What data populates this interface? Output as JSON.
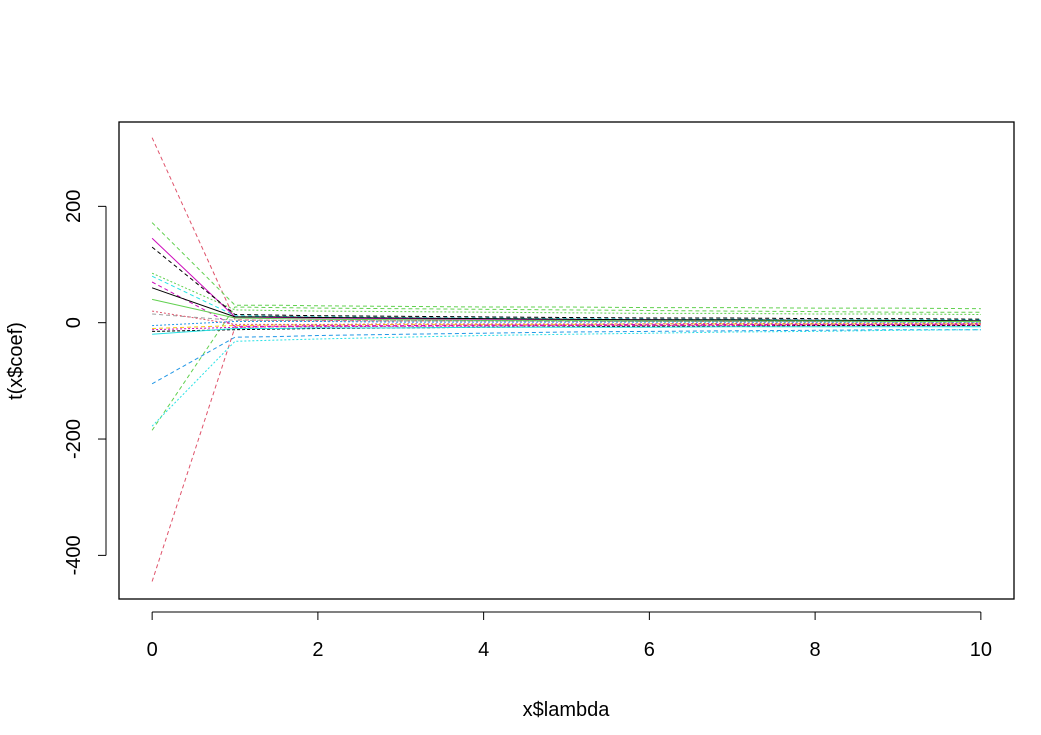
{
  "chart_data": {
    "type": "line",
    "title": "",
    "xlabel": "x$lambda",
    "ylabel": "t(x$coef)",
    "xlim": [
      -0.4,
      10.4
    ],
    "ylim": [
      -475,
      345
    ],
    "xticks": [
      0,
      2,
      4,
      6,
      8,
      10
    ],
    "xtick_labels": [
      "0",
      "2",
      "4",
      "6",
      "8",
      "10"
    ],
    "yticks": [
      -400,
      -200,
      0,
      200
    ],
    "ytick_labels": [
      "-400",
      "-200",
      "0",
      "200"
    ],
    "grid": false,
    "legend": "none",
    "x": [
      0,
      1,
      1.5,
      2,
      3,
      4,
      5,
      6,
      7,
      8,
      9,
      10
    ],
    "series": [
      {
        "color": "#df536b",
        "dash": "4,3",
        "values": [
          318,
          5,
          4,
          4,
          3,
          3,
          3,
          2,
          2,
          2,
          2,
          2
        ]
      },
      {
        "color": "#df536b",
        "dash": "4,3",
        "values": [
          -445,
          -8,
          -7,
          -6,
          -6,
          -5,
          -5,
          -5,
          -4,
          -4,
          -4,
          -4
        ]
      },
      {
        "color": "#61d04f",
        "dash": "4,3",
        "values": [
          172,
          30,
          30,
          29,
          28,
          27,
          27,
          26,
          26,
          25,
          25,
          24
        ]
      },
      {
        "color": "#61d04f",
        "dash": "4,3",
        "values": [
          -185,
          27,
          26,
          25,
          24,
          23,
          22,
          21,
          20,
          19,
          18,
          18
        ]
      },
      {
        "color": "#61d04f",
        "dash": "2,2",
        "values": [
          85,
          22,
          21,
          20,
          19,
          18,
          17,
          16,
          16,
          15,
          15,
          14
        ]
      },
      {
        "color": "#2297e6",
        "dash": "4,3",
        "values": [
          -105,
          -25,
          -24,
          -22,
          -20,
          -18,
          -16,
          -15,
          -14,
          -13,
          -12,
          -12
        ]
      },
      {
        "color": "#28e2e5",
        "dash": "2,2",
        "values": [
          -178,
          -32,
          -30,
          -28,
          -25,
          -22,
          -20,
          -18,
          -16,
          -15,
          -13,
          -12
        ]
      },
      {
        "color": "#28e2e5",
        "dash": "4,3",
        "values": [
          80,
          12,
          11,
          10,
          9,
          8,
          7,
          6,
          6,
          5,
          5,
          5
        ]
      },
      {
        "color": "#cd0bbc",
        "dash": "",
        "values": [
          145,
          10,
          9,
          8,
          7,
          6,
          5,
          5,
          4,
          4,
          3,
          3
        ]
      },
      {
        "color": "#cd0bbc",
        "dash": "4,3",
        "values": [
          70,
          -6,
          -6,
          -5,
          -5,
          -4,
          -4,
          -3,
          -3,
          -3,
          -3,
          -2
        ]
      },
      {
        "color": "#000000",
        "dash": "4,3",
        "values": [
          130,
          14,
          13,
          12,
          11,
          10,
          9,
          8,
          8,
          7,
          7,
          6
        ]
      },
      {
        "color": "#000000",
        "dash": "",
        "values": [
          60,
          10,
          10,
          9,
          8,
          7,
          6,
          5,
          5,
          4,
          4,
          3
        ]
      },
      {
        "color": "#000000",
        "dash": "3,2",
        "values": [
          -15,
          -12,
          -11,
          -10,
          -9,
          -8,
          -7,
          -6,
          -6,
          -5,
          -5,
          -5
        ]
      },
      {
        "color": "#f5c710",
        "dash": "4,3",
        "values": [
          -10,
          -5,
          -4,
          -4,
          -3,
          -3,
          -3,
          -2,
          -2,
          -2,
          -2,
          -2
        ]
      },
      {
        "color": "#9e9e9e",
        "dash": "4,3",
        "values": [
          15,
          4,
          4,
          3,
          3,
          3,
          2,
          2,
          2,
          2,
          1,
          1
        ]
      },
      {
        "color": "#df536b",
        "dash": "2,2",
        "values": [
          20,
          -3,
          -3,
          -3,
          -2,
          -2,
          -2,
          -2,
          -1,
          -1,
          -1,
          -1
        ]
      },
      {
        "color": "#2297e6",
        "dash": "2,2",
        "values": [
          -5,
          2,
          2,
          2,
          1,
          1,
          1,
          1,
          1,
          1,
          1,
          1
        ]
      },
      {
        "color": "#61d04f",
        "dash": "",
        "values": [
          40,
          8,
          7,
          6,
          5,
          4,
          4,
          3,
          3,
          3,
          2,
          2
        ]
      },
      {
        "color": "#cd0bbc",
        "dash": "2,2",
        "values": [
          -12,
          -8,
          -7,
          -7,
          -6,
          -6,
          -5,
          -5,
          -5,
          -4,
          -4,
          -4
        ]
      },
      {
        "color": "#28e2e5",
        "dash": "",
        "values": [
          -20,
          -10,
          -10,
          -9,
          -9,
          -8,
          -8,
          -8,
          -7,
          -7,
          -7,
          -7
        ]
      }
    ]
  }
}
